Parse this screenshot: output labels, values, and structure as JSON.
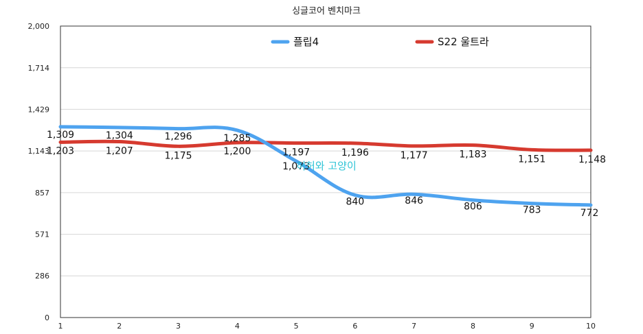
{
  "chart_data": {
    "type": "line",
    "title": "싱글코어 벤치마크",
    "xlabel": "",
    "ylabel": "",
    "x": [
      1,
      2,
      3,
      4,
      5,
      6,
      7,
      8,
      9,
      10
    ],
    "ylim": [
      0,
      2000
    ],
    "yticks": [
      "0",
      "286",
      "571",
      "857",
      "1,143",
      "1,429",
      "1,714",
      "2,000"
    ],
    "ytick_values": [
      0,
      286,
      571,
      857,
      1143,
      1429,
      1714,
      2000
    ],
    "grid": true,
    "legend_position": "top",
    "series": [
      {
        "name": "플립4",
        "color": "#4ea3ef",
        "values": [
          1309,
          1304,
          1296,
          1285,
          1073,
          840,
          846,
          806,
          783,
          772
        ],
        "labels": [
          "1,309",
          "1,304",
          "1,296",
          "1,285",
          "1,073",
          "840",
          "846",
          "806",
          "783",
          "772"
        ]
      },
      {
        "name": "S22 울트라",
        "color": "#d63a2f",
        "values": [
          1203,
          1207,
          1175,
          1200,
          1197,
          1196,
          1177,
          1183,
          1151,
          1148
        ],
        "labels": [
          "1,203",
          "1,207",
          "1,175",
          "1,200",
          "1,197",
          "1,196",
          "1,177",
          "1,183",
          "1,151",
          "1,148"
        ]
      }
    ],
    "watermark": "허허와 고양이"
  }
}
